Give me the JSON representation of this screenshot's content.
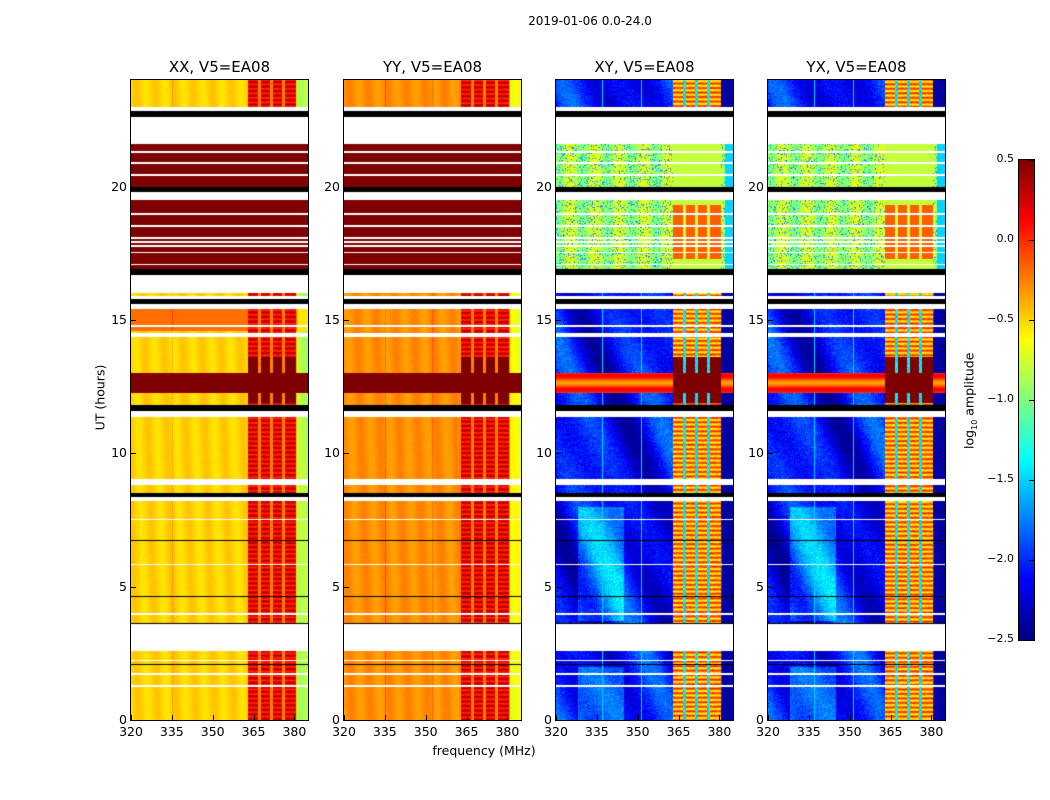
{
  "chart_data": {
    "type": "heatmap",
    "title": "2019-01-06 0.0-24.0",
    "xlabel": "frequency (MHz)",
    "ylabel": "UT (hours)",
    "xlim": [
      320,
      385
    ],
    "ylim": [
      0,
      24
    ],
    "xticks": [
      320,
      335,
      350,
      365,
      380
    ],
    "yticks": [
      0,
      5,
      10,
      15,
      20
    ],
    "panels": [
      {
        "title": "XX, V5=EA08",
        "kind": "parallel",
        "base_level": -0.5
      },
      {
        "title": "YY, V5=EA08",
        "kind": "parallel",
        "base_level": -0.3
      },
      {
        "title": "XY, V5=EA08",
        "kind": "cross",
        "base_level": -2.1
      },
      {
        "title": "YX, V5=EA08",
        "kind": "cross",
        "base_level": -2.1
      }
    ],
    "rfi_channels_mhz": [
      363,
      380.5
    ],
    "time_segments_hours": [
      [
        22.85,
        23.0,
        "flag"
      ],
      [
        22.6,
        22.85,
        "gap"
      ],
      [
        21.6,
        22.6,
        "flag"
      ],
      [
        20.0,
        21.6,
        "sat"
      ],
      [
        21.25,
        21.32,
        "flag"
      ],
      [
        20.85,
        20.92,
        "flag"
      ],
      [
        20.4,
        20.47,
        "flag"
      ],
      [
        19.8,
        20.0,
        "gap"
      ],
      [
        19.5,
        19.8,
        "flag"
      ],
      [
        16.9,
        19.5,
        "sat"
      ],
      [
        18.95,
        19.0,
        "flag"
      ],
      [
        18.5,
        18.56,
        "flag"
      ],
      [
        18.05,
        18.1,
        "flag"
      ],
      [
        17.9,
        17.95,
        "flag"
      ],
      [
        17.75,
        17.8,
        "flag"
      ],
      [
        17.5,
        17.55,
        "flag"
      ],
      [
        17.05,
        17.1,
        "flag"
      ],
      [
        16.7,
        16.9,
        "gap"
      ],
      [
        16.0,
        16.7,
        "flag"
      ],
      [
        15.8,
        15.9,
        "flag"
      ],
      [
        15.6,
        15.8,
        "gap"
      ],
      [
        15.4,
        15.6,
        "flag"
      ],
      [
        14.75,
        14.82,
        "flag"
      ],
      [
        14.35,
        14.5,
        "flag"
      ],
      [
        12.25,
        13.0,
        "strong"
      ],
      [
        11.6,
        11.8,
        "gap"
      ],
      [
        11.35,
        11.6,
        "flag"
      ],
      [
        8.8,
        9.05,
        "flag"
      ],
      [
        8.35,
        8.5,
        "gap"
      ],
      [
        8.2,
        8.35,
        "flag"
      ],
      [
        7.5,
        7.55,
        "flag"
      ],
      [
        6.7,
        6.75,
        "gap"
      ],
      [
        5.8,
        5.85,
        "flag"
      ],
      [
        4.6,
        4.65,
        "gap"
      ],
      [
        3.95,
        4.0,
        "flag"
      ],
      [
        3.6,
        3.65,
        "gap"
      ],
      [
        3.27,
        3.6,
        "flag"
      ],
      [
        2.6,
        3.27,
        "flag"
      ],
      [
        2.2,
        2.26,
        "flag"
      ],
      [
        2.05,
        2.1,
        "gap"
      ],
      [
        1.7,
        1.76,
        "flag"
      ],
      [
        1.25,
        1.31,
        "flag"
      ]
    ],
    "colorbar": {
      "label_main": "log",
      "label_sub": "10",
      "label_rest": " amplitude",
      "range": [
        -2.5,
        0.5
      ],
      "ticks": [
        "0.5",
        "0.0",
        "−0.5",
        "−1.0",
        "−1.5",
        "−2.0",
        "−2.5"
      ],
      "tick_values": [
        0.5,
        0.0,
        -0.5,
        -1.0,
        -1.5,
        -2.0,
        -2.5
      ],
      "colormap": "jet"
    }
  }
}
